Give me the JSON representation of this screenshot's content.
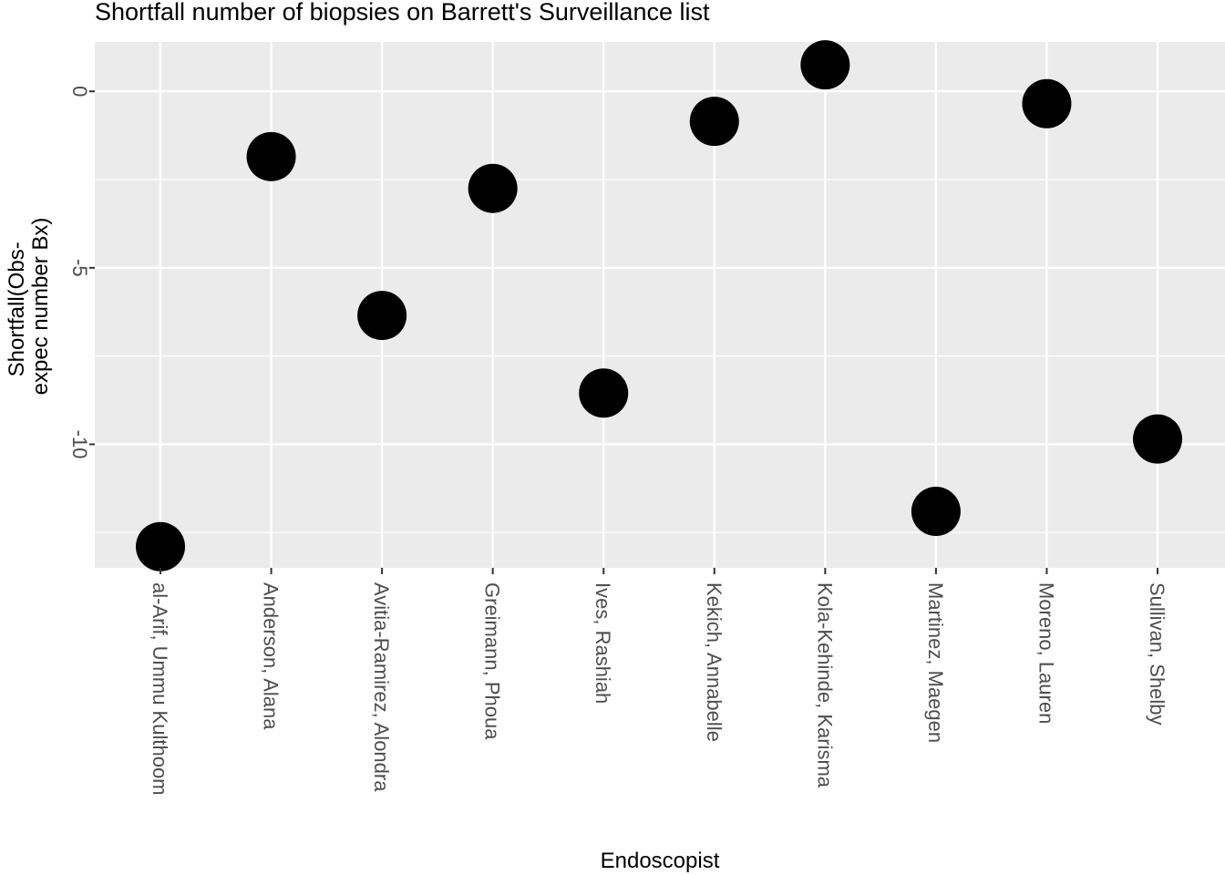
{
  "chart_data": {
    "type": "scatter",
    "title": "Shortfall number of biopsies on Barrett's Surveillance list",
    "xlabel": "Endoscopist",
    "ylabel_lines": [
      "Shortfall(Obs-",
      "expec number Bx)"
    ],
    "categories": [
      "al-Arif, Ummu Kulthoom",
      "Anderson, Alana",
      "Avitia-Ramirez, Alondra",
      "Greimann, Phoua",
      "Ives, Rashiah",
      "Kekich, Annabelle",
      "Kola-Kehinde, Karisma",
      "Martinez, Maegen",
      "Moreno, Lauren",
      "Sullivan, Shelby"
    ],
    "values": [
      -12.9,
      -1.85,
      -6.35,
      -2.75,
      -8.55,
      -0.85,
      0.75,
      -11.9,
      -0.35,
      -9.85
    ],
    "ylim": [
      -13.5,
      1.4
    ],
    "yticks": [
      0,
      -5,
      -10
    ],
    "ytick_labels": [
      "0",
      "-5",
      "-10"
    ],
    "grid": true,
    "legend": "none",
    "point_color": "#000000",
    "panel_color": "#ebebeb",
    "grid_color": "#ffffff"
  }
}
